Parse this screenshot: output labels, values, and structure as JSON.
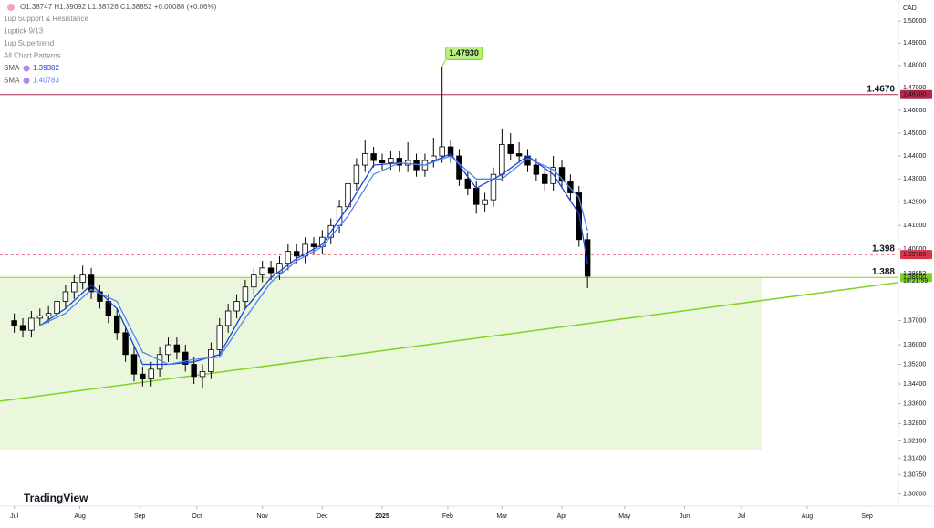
{
  "chart_data": {
    "type": "candlestick",
    "header": "O1.38747 H1.39092 L1.38726 C1.38852 +0.00088 (+0.06%)",
    "indicators": [
      "1up Support & Resistance",
      "1uptick 9/13",
      "1up Supertrend",
      "All Chart Patterns"
    ],
    "currency": "CAD",
    "logo": "TradingView",
    "countdown": "18:21:59",
    "price_label": "1.38852",
    "log": true,
    "xlim": [
      -5,
      310
    ],
    "ylim": [
      1.2952,
      1.5096
    ],
    "xticks": [
      {
        "value": 0,
        "label": "Jul"
      },
      {
        "value": 23,
        "label": "Aug"
      },
      {
        "value": 44,
        "label": "Sep"
      },
      {
        "value": 64,
        "label": "Oct"
      },
      {
        "value": 87,
        "label": "Nov"
      },
      {
        "value": 108,
        "label": "Dec"
      },
      {
        "value": 129,
        "label": "2025"
      },
      {
        "value": 152,
        "label": "Feb"
      },
      {
        "value": 171,
        "label": "Mar"
      },
      {
        "value": 192,
        "label": "Apr"
      },
      {
        "value": 214,
        "label": "May"
      },
      {
        "value": 235,
        "label": "Jun"
      },
      {
        "value": 255,
        "label": "Jul"
      },
      {
        "value": 278,
        "label": "Aug"
      },
      {
        "value": 299,
        "label": "Sep"
      }
    ],
    "yticks": [
      {
        "value": 1.5,
        "label": "1.50000"
      },
      {
        "value": 1.49,
        "label": "1.49000"
      },
      {
        "value": 1.48,
        "label": "1.48000"
      },
      {
        "value": 1.47,
        "label": "1.47000"
      },
      {
        "value": 1.46,
        "label": "1.46000"
      },
      {
        "value": 1.45,
        "label": "1.45000"
      },
      {
        "value": 1.44,
        "label": "1.44000"
      },
      {
        "value": 1.43,
        "label": "1.43000"
      },
      {
        "value": 1.42,
        "label": "1.42000"
      },
      {
        "value": 1.41,
        "label": "1.41000"
      },
      {
        "value": 1.4,
        "label": "1.40000"
      },
      {
        "value": 1.37,
        "label": "1.37000"
      },
      {
        "value": 1.36,
        "label": "1.36000"
      },
      {
        "value": 1.352,
        "label": "1.35200"
      },
      {
        "value": 1.344,
        "label": "1.34400"
      },
      {
        "value": 1.336,
        "label": "1.33600"
      },
      {
        "value": 1.328,
        "label": "1.32800"
      },
      {
        "value": 1.321,
        "label": "1.32100"
      },
      {
        "value": 1.314,
        "label": "1.31400"
      },
      {
        "value": 1.3075,
        "label": "1.30750"
      },
      {
        "value": 1.3,
        "label": "1.30000"
      }
    ],
    "x": [
      0,
      3,
      6,
      9,
      12,
      15,
      18,
      21,
      24,
      27,
      30,
      33,
      36,
      39,
      42,
      45,
      48,
      51,
      54,
      57,
      60,
      63,
      66,
      69,
      72,
      75,
      78,
      81,
      84,
      87,
      90,
      93,
      96,
      99,
      102,
      105,
      108,
      111,
      114,
      117,
      120,
      123,
      126,
      129,
      132,
      135,
      138,
      141,
      144,
      147,
      150,
      153,
      156,
      159,
      162,
      165,
      168,
      171,
      174,
      177,
      180,
      183,
      186,
      189,
      192,
      195,
      198,
      201
    ],
    "open": [
      1.37,
      1.368,
      1.366,
      1.371,
      1.372,
      1.373,
      1.378,
      1.382,
      1.386,
      1.389,
      1.382,
      1.378,
      1.372,
      1.365,
      1.356,
      1.348,
      1.346,
      1.35,
      1.356,
      1.36,
      1.357,
      1.352,
      1.347,
      1.349,
      1.358,
      1.368,
      1.374,
      1.378,
      1.384,
      1.389,
      1.392,
      1.39,
      1.394,
      1.399,
      1.397,
      1.402,
      1.401,
      1.405,
      1.41,
      1.418,
      1.428,
      1.436,
      1.441,
      1.438,
      1.437,
      1.439,
      1.436,
      1.438,
      1.434,
      1.438,
      1.44,
      1.444,
      1.44,
      1.43,
      1.426,
      1.419,
      1.421,
      1.432,
      1.445,
      1.441,
      1.44,
      1.436,
      1.432,
      1.428,
      1.435,
      1.429,
      1.424,
      1.404
    ],
    "high": [
      1.373,
      1.371,
      1.374,
      1.375,
      1.376,
      1.381,
      1.385,
      1.389,
      1.393,
      1.392,
      1.385,
      1.381,
      1.375,
      1.368,
      1.359,
      1.351,
      1.353,
      1.359,
      1.363,
      1.363,
      1.36,
      1.355,
      1.352,
      1.361,
      1.371,
      1.377,
      1.381,
      1.387,
      1.392,
      1.395,
      1.395,
      1.397,
      1.402,
      1.402,
      1.405,
      1.405,
      1.408,
      1.413,
      1.421,
      1.431,
      1.439,
      1.447,
      1.444,
      1.441,
      1.442,
      1.442,
      1.446,
      1.441,
      1.441,
      1.448,
      1.4793,
      1.447,
      1.443,
      1.433,
      1.429,
      1.424,
      1.435,
      1.452,
      1.45,
      1.446,
      1.443,
      1.439,
      1.435,
      1.44,
      1.438,
      1.432,
      1.427,
      1.407
    ],
    "low": [
      1.365,
      1.363,
      1.363,
      1.368,
      1.369,
      1.37,
      1.375,
      1.379,
      1.383,
      1.379,
      1.375,
      1.369,
      1.362,
      1.353,
      1.345,
      1.343,
      1.343,
      1.347,
      1.353,
      1.354,
      1.349,
      1.344,
      1.342,
      1.346,
      1.355,
      1.365,
      1.371,
      1.375,
      1.381,
      1.386,
      1.387,
      1.387,
      1.391,
      1.394,
      1.394,
      1.398,
      1.398,
      1.402,
      1.407,
      1.415,
      1.425,
      1.433,
      1.435,
      1.434,
      1.434,
      1.433,
      1.433,
      1.431,
      1.431,
      1.435,
      1.437,
      1.437,
      1.427,
      1.423,
      1.415,
      1.416,
      1.418,
      1.429,
      1.438,
      1.437,
      1.433,
      1.429,
      1.425,
      1.425,
      1.426,
      1.421,
      1.401,
      1.3835
    ],
    "close": [
      1.368,
      1.366,
      1.371,
      1.372,
      1.373,
      1.378,
      1.382,
      1.386,
      1.389,
      1.382,
      1.378,
      1.372,
      1.365,
      1.356,
      1.348,
      1.346,
      1.35,
      1.356,
      1.36,
      1.357,
      1.352,
      1.347,
      1.349,
      1.358,
      1.368,
      1.374,
      1.378,
      1.384,
      1.389,
      1.392,
      1.39,
      1.394,
      1.399,
      1.397,
      1.402,
      1.401,
      1.405,
      1.41,
      1.418,
      1.428,
      1.436,
      1.441,
      1.438,
      1.437,
      1.439,
      1.436,
      1.438,
      1.434,
      1.438,
      1.44,
      1.444,
      1.44,
      1.43,
      1.426,
      1.419,
      1.421,
      1.432,
      1.445,
      1.441,
      1.44,
      1.436,
      1.432,
      1.428,
      1.435,
      1.429,
      1.424,
      1.404,
      1.38852
    ],
    "up_color": "#ffffff",
    "down_color": "#000000",
    "series": [
      {
        "name": "SMA",
        "value_label": "1.39382",
        "color": "#1e3fd8",
        "x": [
          9,
          18,
          27,
          36,
          45,
          54,
          63,
          72,
          81,
          90,
          99,
          108,
          117,
          126,
          135,
          144,
          153,
          162,
          171,
          180,
          189,
          198,
          201
        ],
        "values": [
          1.368,
          1.375,
          1.385,
          1.375,
          1.352,
          1.352,
          1.353,
          1.356,
          1.375,
          1.388,
          1.396,
          1.402,
          1.418,
          1.436,
          1.437,
          1.436,
          1.441,
          1.426,
          1.432,
          1.44,
          1.432,
          1.415,
          1.39382
        ]
      },
      {
        "name": "SMA",
        "value_label": "1.40783",
        "color": "#4f86f0",
        "x": [
          9,
          18,
          27,
          36,
          45,
          54,
          63,
          72,
          81,
          90,
          99,
          108,
          117,
          126,
          135,
          144,
          153,
          162,
          171,
          180,
          189,
          198,
          201
        ],
        "values": [
          1.368,
          1.373,
          1.383,
          1.378,
          1.357,
          1.352,
          1.354,
          1.355,
          1.371,
          1.386,
          1.395,
          1.401,
          1.414,
          1.432,
          1.437,
          1.436,
          1.44,
          1.43,
          1.43,
          1.439,
          1.434,
          1.422,
          1.40783
        ]
      }
    ],
    "hlines": [
      {
        "value": 1.467,
        "label": "1.4670",
        "axis_label": "1.46700",
        "color": "#b0284a",
        "dashed": false
      },
      {
        "value": 1.39768,
        "label": "1.398",
        "axis_label": "1.39768",
        "color": "#d9364d",
        "dashed": true
      },
      {
        "value": 1.388,
        "label": "1.388",
        "axis_label": "1.38800",
        "color": "#7ed321",
        "dashed": false
      }
    ],
    "trendline": {
      "x": [
        -5,
        310
      ],
      "y": [
        1.337,
        1.3859
      ],
      "color": "#7ed321"
    },
    "zone": {
      "x": [
        -5,
        262
      ],
      "y": [
        1.3176,
        1.388
      ],
      "color": "#eaf7dd"
    },
    "high_label": {
      "x": 150,
      "value": 1.4793,
      "label": "1.47930"
    }
  }
}
